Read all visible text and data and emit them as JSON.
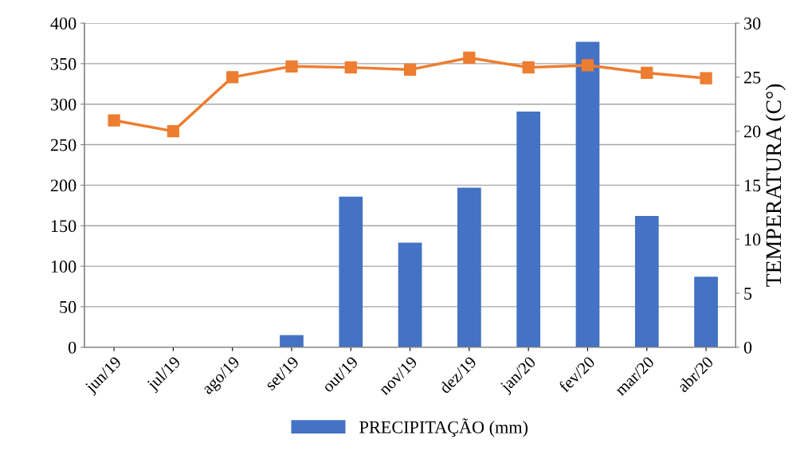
{
  "chart_data": {
    "type": "bar",
    "categories": [
      "jun/19",
      "jul/19",
      "ago/19",
      "set/19",
      "out/19",
      "nov/19",
      "dez/19",
      "jan/20",
      "fev/20",
      "mar/20",
      "abr/20"
    ],
    "series": [
      {
        "name": "PRECIPITAÇÃO (mm)",
        "color": "#4472c4",
        "values": [
          0,
          0,
          0,
          15,
          186,
          129,
          197,
          291,
          377,
          162,
          87
        ]
      },
      {
        "type": "line",
        "axis": "y2",
        "color": "#ed7d31",
        "marker": "square",
        "values": [
          21.0,
          20.0,
          25.0,
          26.0,
          25.9,
          25.7,
          26.8,
          25.9,
          26.1,
          25.4,
          24.9
        ]
      }
    ],
    "y2label": "TEMPERATURA (C°)",
    "ylim": [
      0,
      400
    ],
    "yticks": [
      0,
      50,
      100,
      150,
      200,
      250,
      300,
      350,
      400
    ],
    "y2lim": [
      0,
      30
    ],
    "y2ticks": [
      0,
      5,
      10,
      15,
      20,
      25,
      30
    ],
    "grid": "y",
    "legend": "bottom"
  }
}
